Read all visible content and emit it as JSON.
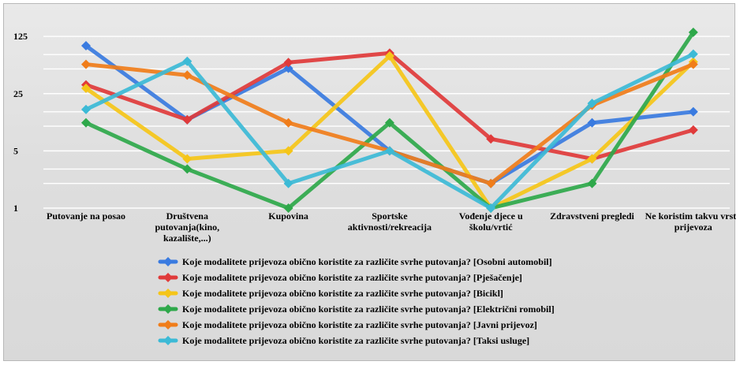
{
  "chart_data": {
    "type": "line",
    "title": "",
    "xlabel": "",
    "ylabel": "",
    "yscale": "log",
    "ylim": [
      1,
      160
    ],
    "yticks": [
      1,
      5,
      25,
      125
    ],
    "grid": true,
    "legend_position": "bottom",
    "categories": [
      [
        "Putovanje na posao"
      ],
      [
        "Društvena",
        "putovanja(kino,",
        "kazalište,...)"
      ],
      [
        "Kupovina"
      ],
      [
        "Sportske",
        "aktivnosti/rekreacija"
      ],
      [
        "Vođenje djece u",
        "školu/vrtić"
      ],
      [
        "Zdravstveni pregledi"
      ],
      [
        "Ne koristim takvu vrstu",
        "prijevoza"
      ]
    ],
    "series": [
      {
        "name": "Koje modalitete prijevoza obično koristite za različite svrhe putovanja? [Osobni automobil]",
        "color": "#3a7be0",
        "values": [
          96,
          12,
          51,
          5,
          2,
          11,
          15
        ]
      },
      {
        "name": "Koje modalitete prijevoza obično koristite za različite svrhe putovanja? [Pješačenje]",
        "color": "#e03a3a",
        "values": [
          32,
          12,
          60,
          78,
          7,
          4,
          9
        ]
      },
      {
        "name": "Koje modalitete prijevoza obično koristite za različite svrhe putovanja? [Bicikl]",
        "color": "#f5c518",
        "values": [
          29,
          4,
          5,
          72,
          1,
          4,
          61
        ]
      },
      {
        "name": "Koje modalitete prijevoza obično koristite za različite svrhe putovanja? [Električni romobil]",
        "color": "#2ea84a",
        "values": [
          11,
          3,
          1,
          11,
          1,
          2,
          140
        ]
      },
      {
        "name": "Koje modalitete prijevoza obično koristite za različite svrhe putovanja? [Javni prijevoz]",
        "color": "#f07d1a",
        "values": [
          57,
          42,
          11,
          5,
          2,
          18,
          57
        ]
      },
      {
        "name": "Koje modalitete prijevoza obično koristite za različite svrhe putovanja? [Taksi usluge]",
        "color": "#3cbad6",
        "values": [
          16,
          62,
          2,
          5,
          1,
          19,
          76
        ]
      }
    ]
  }
}
